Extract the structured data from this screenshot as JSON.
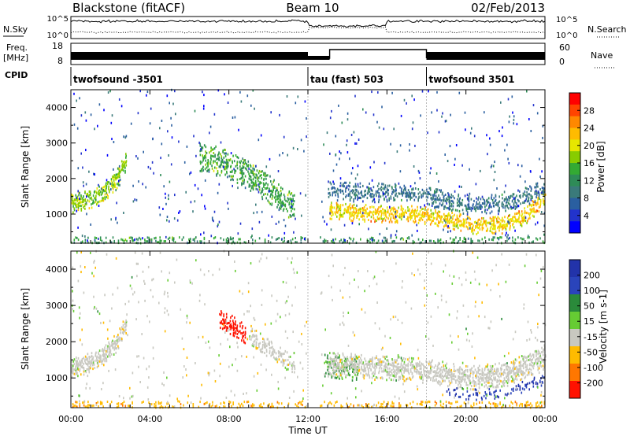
{
  "header": {
    "station": "Blackstone (fitACF)",
    "beam": "Beam 10",
    "date": "02/Feb/2013"
  },
  "sky_panel": {
    "left_label": "N.Sky",
    "right_label": "N.Search",
    "left_ticks": [
      "10^5",
      "10^0"
    ],
    "right_ticks": [
      "10^5",
      "10^0"
    ]
  },
  "freq_panel": {
    "left_label": "Freq.",
    "left_unit": "[MHz]",
    "right_label": "Nave",
    "left_ticks": [
      "18",
      "8"
    ],
    "right_ticks": [
      "60",
      "0"
    ]
  },
  "cpid": {
    "label": "CPID",
    "segments": [
      {
        "start_hour": 0,
        "end_hour": 12,
        "text": "twofsound -3501"
      },
      {
        "start_hour": 12,
        "end_hour": 18,
        "text": "tau (fast) 503"
      },
      {
        "start_hour": 18,
        "end_hour": 24,
        "text": "twofsound 3501"
      }
    ]
  },
  "power_colorbar": {
    "label": "Power [dB]",
    "ticks": [
      "28",
      "24",
      "20",
      "16",
      "12",
      "8",
      "4"
    ],
    "colors": [
      "#ff0000",
      "#ff4400",
      "#ff8800",
      "#ffbb00",
      "#e6e600",
      "#88cc00",
      "#33aa33",
      "#2e8b57",
      "#3a7a7a",
      "#2a5fa0",
      "#2233cc",
      "#0000ff"
    ]
  },
  "velocity_colorbar": {
    "label": "Velocity [m s-1]",
    "ticks": [
      "200",
      "100",
      "50",
      "15",
      "-15",
      "-50",
      "-100",
      "-200"
    ],
    "colors": [
      "#2233aa",
      "#2a44bb",
      "#2a8a3a",
      "#66cc33",
      "#c8c8c0",
      "#ffbb00",
      "#ff7700",
      "#ff1100"
    ]
  },
  "chart_data": {
    "type": "heatmap",
    "title": "Blackstone (fitACF)   Beam 10   02/Feb/2013",
    "xlabel": "Time UT",
    "x_ticks": [
      "00:00",
      "04:00",
      "08:00",
      "12:00",
      "16:00",
      "20:00",
      "00:00"
    ],
    "xlim_hours": [
      0,
      24
    ],
    "panels": [
      {
        "name": "Power",
        "ylabel": "Slant Range [km]",
        "ylim": [
          180,
          4500
        ],
        "y_ticks": [
          1000,
          2000,
          3000,
          4000
        ],
        "color_label": "Power [dB]",
        "color_range": [
          0,
          30
        ],
        "bands": [
          {
            "t": [
              0,
              1,
              1.7,
              2.3,
              2.8
            ],
            "r": [
              1300,
              1450,
              1650,
              2000,
              2500
            ],
            "w": 520,
            "value_center": 16,
            "density": 0.65
          },
          {
            "t": [
              6.5,
              7.5,
              8.5,
              9.5,
              10.5,
              11.3
            ],
            "r": [
              2600,
              2500,
              2250,
              1900,
              1500,
              1200
            ],
            "w": 800,
            "value_center": 13,
            "density": 0.45
          },
          {
            "t": [
              13,
              14,
              15.5,
              17,
              18,
              19,
              20.5,
              22,
              23,
              24
            ],
            "r": [
              1100,
              1050,
              1000,
              1000,
              950,
              850,
              650,
              700,
              950,
              1500
            ],
            "w": 450,
            "value_center": 20,
            "density": 0.6
          },
          {
            "t": [
              13,
              15,
              17,
              18,
              20,
              22,
              24
            ],
            "r": [
              1650,
              1600,
              1600,
              1500,
              1250,
              1300,
              1700
            ],
            "w": 500,
            "value_center": 8,
            "density": 0.45
          }
        ],
        "ground_strip": {
          "range_max": 350,
          "value_center": 12,
          "density": 0.2
        },
        "noise": {
          "count": 520,
          "value_center": 5
        }
      },
      {
        "name": "Velocity",
        "ylabel": "Slant Range [km]",
        "ylim": [
          180,
          4500
        ],
        "y_ticks": [
          1000,
          2000,
          3000,
          4000
        ],
        "color_label": "Velocity [m s-1]",
        "color_range": [
          -250,
          250
        ],
        "bands": [
          {
            "t": [
              0,
              1,
              1.7,
              2.3,
              2.8
            ],
            "r": [
              1300,
              1450,
              1650,
              2000,
              2500
            ],
            "w": 520,
            "value_center": 0,
            "density": 0.65
          },
          {
            "t": [
              7.5,
              8.3,
              8.8
            ],
            "r": [
              2600,
              2400,
              2200
            ],
            "w": 500,
            "value_center": -200,
            "density": 0.5
          },
          {
            "t": [
              9,
              10,
              11.3
            ],
            "r": [
              2200,
              1800,
              1300
            ],
            "w": 500,
            "value_center": 0,
            "density": 0.45
          },
          {
            "t": [
              12.8,
              13.8,
              14.5
            ],
            "r": [
              1400,
              1300,
              1200
            ],
            "w": 700,
            "value_center": 30,
            "density": 0.4
          },
          {
            "t": [
              13,
              15,
              17,
              18,
              20,
              22,
              24
            ],
            "r": [
              1400,
              1300,
              1250,
              1200,
              1000,
              1100,
              1600
            ],
            "w": 650,
            "value_center": 0,
            "density": 0.6
          },
          {
            "t": [
              19,
              20.5,
              22,
              23,
              24
            ],
            "r": [
              600,
              550,
              600,
              800,
              1000
            ],
            "w": 300,
            "value_center": 150,
            "density": 0.25
          }
        ],
        "ground_strip": {
          "range_max": 350,
          "value_center": -40,
          "density": 0.2
        },
        "noise": {
          "count": 520,
          "value_center": 0
        }
      }
    ]
  }
}
